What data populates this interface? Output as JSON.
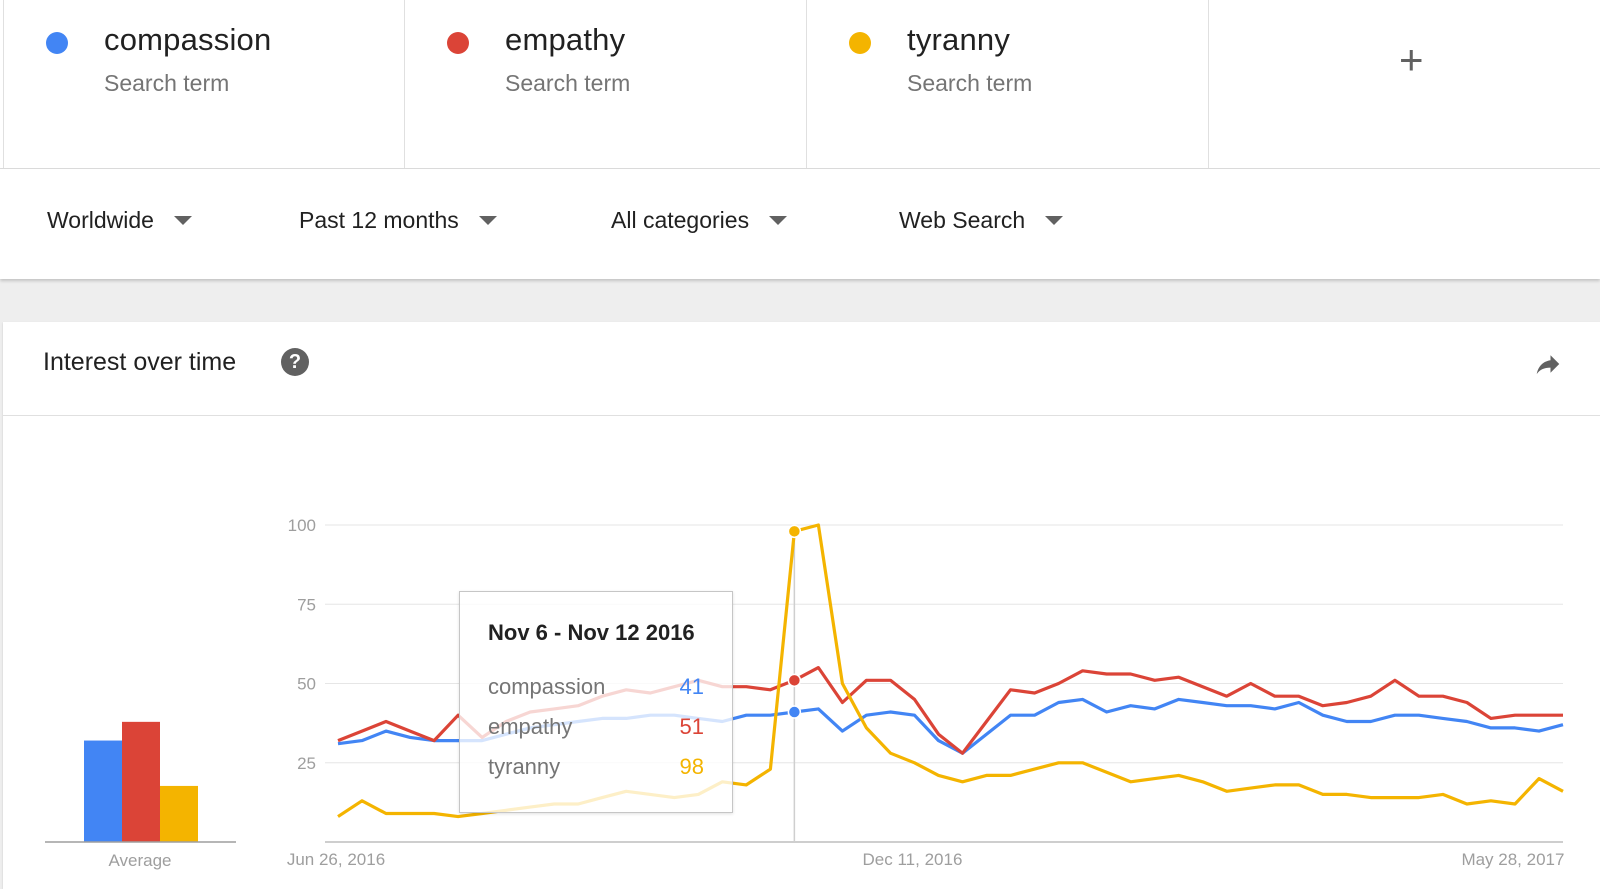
{
  "terms": [
    {
      "name": "compassion",
      "subtitle": "Search term",
      "color": "#4285f4"
    },
    {
      "name": "empathy",
      "subtitle": "Search term",
      "color": "#db4437"
    },
    {
      "name": "tyranny",
      "subtitle": "Search term",
      "color": "#f4b400"
    }
  ],
  "add_term_label": "+",
  "filters": {
    "region": "Worldwide",
    "time": "Past 12 months",
    "category": "All categories",
    "search_type": "Web Search"
  },
  "card": {
    "title": "Interest over time",
    "help_icon": "help-icon",
    "share_icon": "share-icon"
  },
  "tooltip": {
    "title": "Nov 6 - Nov 12 2016",
    "rows": [
      {
        "label": "compassion",
        "value": "41",
        "color": "#4285f4"
      },
      {
        "label": "empathy",
        "value": "51",
        "color": "#db4437"
      },
      {
        "label": "tyranny",
        "value": "98",
        "color": "#f4b400"
      }
    ]
  },
  "chart_data": [
    {
      "type": "line",
      "title": "",
      "x_tick_labels": [
        "Jun 26, 2016",
        "Dec 11, 2016",
        "May 28, 2017"
      ],
      "ylim": [
        0,
        100
      ],
      "y_ticks": [
        25,
        50,
        75,
        100
      ],
      "grid": true,
      "series": [
        {
          "name": "compassion",
          "color": "#4285f4",
          "values": [
            31,
            32,
            35,
            33,
            32,
            32,
            32,
            34,
            36,
            37,
            38,
            39,
            39,
            40,
            40,
            39,
            38,
            40,
            40,
            41,
            42,
            35,
            40,
            41,
            40,
            32,
            28,
            34,
            40,
            40,
            44,
            45,
            41,
            43,
            42,
            45,
            44,
            43,
            43,
            42,
            44,
            40,
            38,
            38,
            40,
            40,
            39,
            38,
            36,
            36,
            35,
            37
          ]
        },
        {
          "name": "empathy",
          "color": "#db4437",
          "values": [
            32,
            35,
            38,
            35,
            32,
            40,
            33,
            38,
            41,
            42,
            43,
            46,
            48,
            47,
            49,
            51,
            49,
            49,
            48,
            51,
            55,
            44,
            51,
            51,
            45,
            34,
            28,
            38,
            48,
            47,
            50,
            54,
            53,
            53,
            51,
            52,
            49,
            46,
            50,
            46,
            46,
            43,
            44,
            46,
            51,
            46,
            46,
            44,
            39,
            40,
            40,
            40
          ]
        },
        {
          "name": "tyranny",
          "color": "#f4b400",
          "values": [
            8,
            13,
            9,
            9,
            9,
            8,
            9,
            10,
            11,
            12,
            12,
            14,
            16,
            15,
            14,
            15,
            19,
            18,
            23,
            98,
            100,
            50,
            36,
            28,
            25,
            21,
            19,
            21,
            21,
            23,
            25,
            25,
            22,
            19,
            20,
            21,
            19,
            16,
            17,
            18,
            18,
            15,
            15,
            14,
            14,
            14,
            15,
            12,
            13,
            12,
            20,
            16
          ]
        }
      ]
    },
    {
      "type": "bar",
      "title": "",
      "categories": [
        "compassion",
        "empathy",
        "tyranny"
      ],
      "values": [
        38,
        45,
        21
      ],
      "xlabel": "Average",
      "ylim": [
        0,
        100
      ]
    }
  ]
}
